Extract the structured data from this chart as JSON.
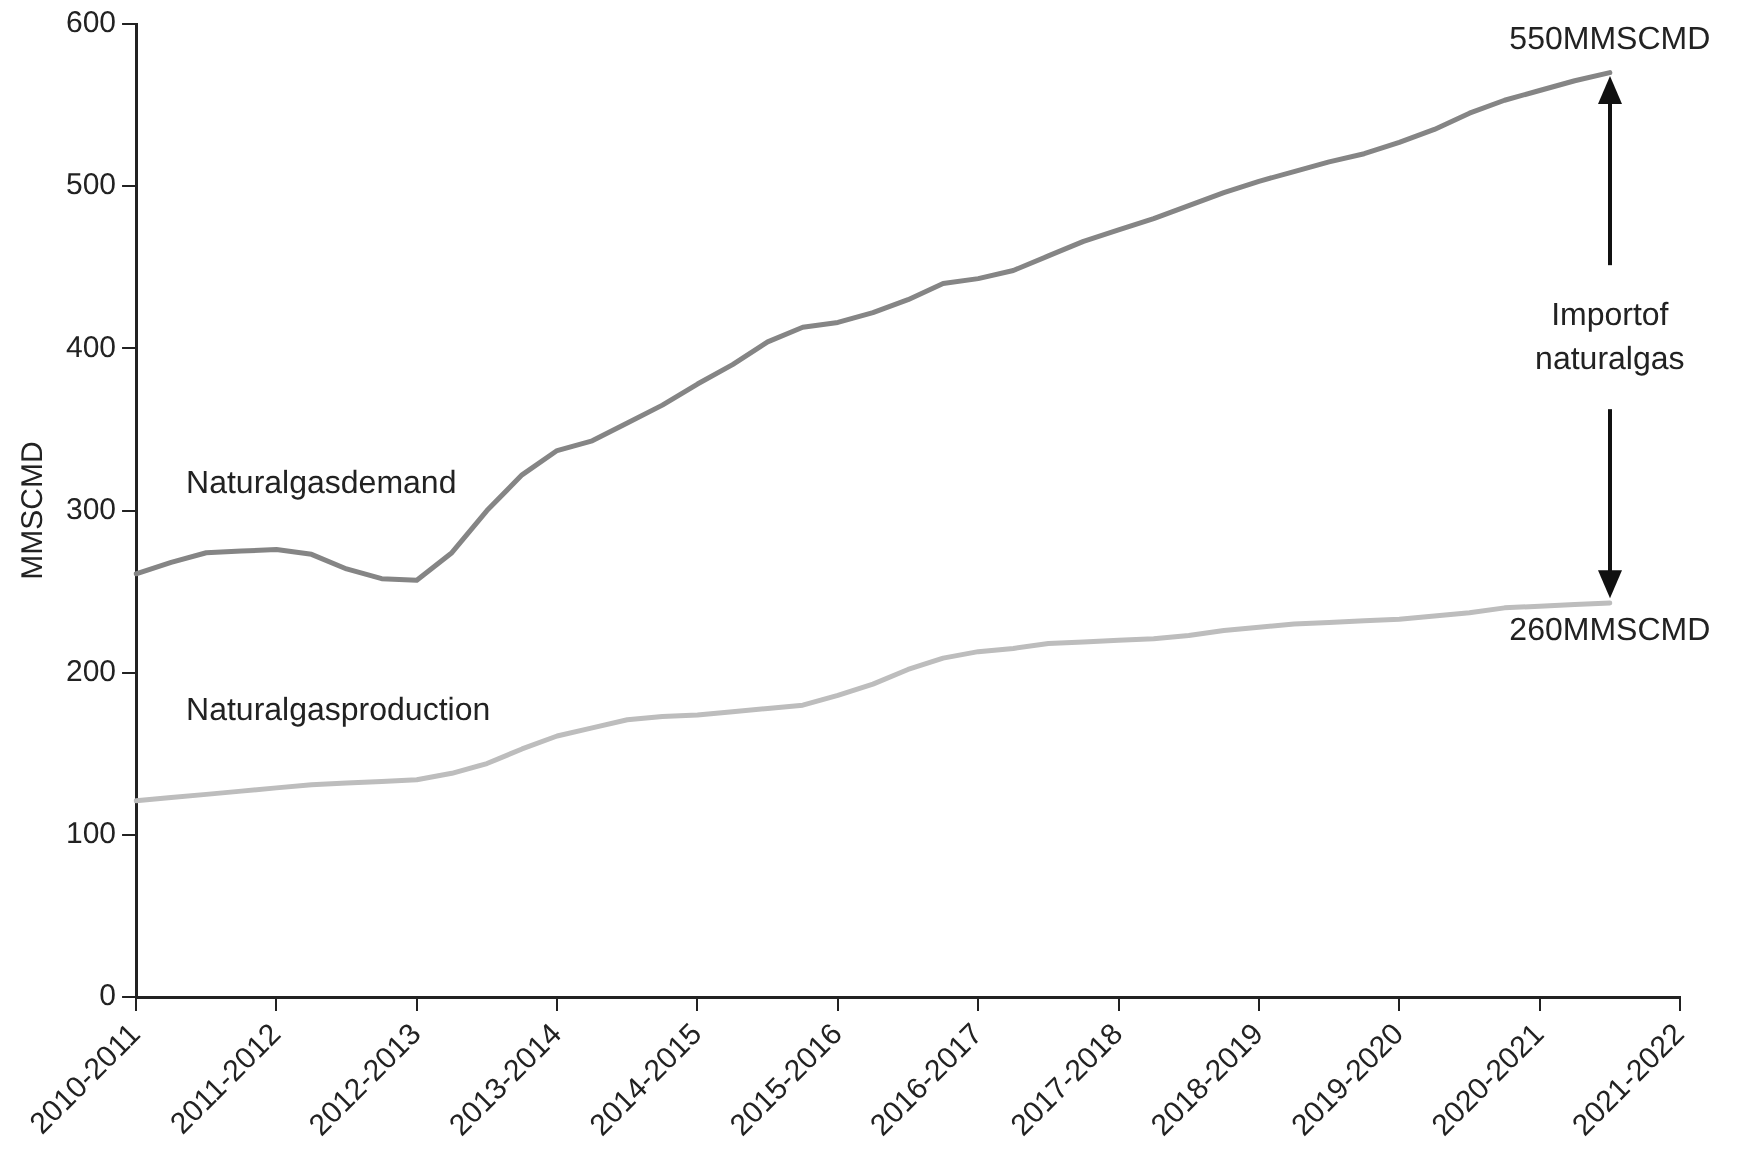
{
  "chart_data": {
    "type": "line",
    "ylabel": "MMSCMD",
    "categories": [
      "2010-2011",
      null,
      null,
      null,
      "2011-2012",
      null,
      null,
      null,
      "2012-2013",
      null,
      null,
      null,
      "2013-2014",
      null,
      null,
      null,
      "2014-2015",
      null,
      null,
      null,
      "2015-2016",
      null,
      null,
      null,
      "2016-2017",
      null,
      null,
      null,
      "2017-2018",
      null,
      null,
      null,
      "2018-2019",
      null,
      null,
      null,
      "2019-2020",
      null,
      null,
      null,
      "2020-2021",
      null,
      null,
      null,
      "2021-2022"
    ],
    "ylim": [
      0,
      600
    ],
    "yticks": [
      0,
      100,
      200,
      300,
      400,
      500,
      600
    ],
    "grid": false,
    "legend": false,
    "marker": "none",
    "line_style": "solid",
    "series": [
      {
        "name": "Naturalgasdemand",
        "color": "#858585",
        "values": [
          261,
          268,
          274,
          275,
          276,
          273,
          264,
          258,
          257,
          274,
          300,
          322,
          337,
          343,
          354,
          365,
          378,
          390,
          404,
          413,
          416,
          422,
          430,
          440,
          443,
          448,
          457,
          466,
          473,
          480,
          488,
          496,
          503,
          509,
          515,
          520,
          527,
          535,
          545,
          553,
          559,
          565,
          570,
          null,
          null
        ]
      },
      {
        "name": "Naturalgasproduction",
        "color": "#bdbdbd",
        "values": [
          121,
          123,
          125,
          127,
          129,
          131,
          132,
          133,
          134,
          138,
          144,
          153,
          161,
          166,
          171,
          173,
          174,
          176,
          178,
          180,
          186,
          193,
          202,
          209,
          213,
          215,
          218,
          219,
          220,
          221,
          223,
          226,
          228,
          230,
          231,
          232,
          233,
          235,
          237,
          240,
          241,
          242,
          243,
          null,
          null
        ]
      }
    ],
    "annotations": [
      {
        "text": "550MMSCMD",
        "y": 570
      },
      {
        "text": "260MMSCMD",
        "y": 243
      },
      "Importof naturalgas"
    ]
  }
}
